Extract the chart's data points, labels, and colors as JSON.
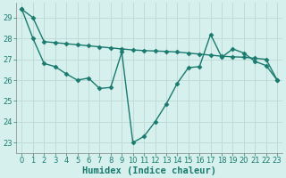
{
  "title": "",
  "xlabel": "Humidex (Indice chaleur)",
  "ylabel": "",
  "background_color": "#d6f0ee",
  "line_color": "#1a7a6e",
  "grid_color": "#c0dbd8",
  "xlim": [
    -0.5,
    23.5
  ],
  "ylim": [
    22.5,
    29.7
  ],
  "yticks": [
    23,
    24,
    25,
    26,
    27,
    28,
    29
  ],
  "xticks": [
    0,
    1,
    2,
    3,
    4,
    5,
    6,
    7,
    8,
    9,
    10,
    11,
    12,
    13,
    14,
    15,
    16,
    17,
    18,
    19,
    20,
    21,
    22,
    23
  ],
  "line1_x": [
    0,
    1,
    2,
    3,
    4,
    5,
    6,
    7,
    8,
    9,
    10,
    11,
    12,
    13,
    14,
    15,
    16,
    17,
    18,
    19,
    20,
    21,
    22,
    23
  ],
  "line1_y": [
    29.4,
    29.0,
    27.85,
    27.8,
    27.75,
    27.7,
    27.65,
    27.6,
    27.55,
    27.5,
    27.45,
    27.42,
    27.4,
    27.38,
    27.35,
    27.3,
    27.25,
    27.2,
    27.15,
    27.12,
    27.1,
    27.05,
    27.0,
    26.0
  ],
  "line2_x": [
    0,
    1,
    2,
    3,
    4,
    5,
    6,
    7,
    8,
    9,
    10,
    11,
    12,
    13,
    14,
    15,
    16,
    17,
    18,
    19,
    20,
    21,
    22,
    23
  ],
  "line2_y": [
    29.4,
    28.0,
    26.8,
    26.65,
    26.3,
    26.0,
    26.1,
    25.6,
    25.65,
    27.35,
    23.0,
    23.3,
    24.0,
    24.85,
    25.85,
    26.6,
    26.65,
    28.2,
    27.1,
    27.5,
    27.3,
    26.9,
    26.7,
    26.0
  ],
  "marker": "D",
  "markersize": 2.5,
  "linewidth": 1.0,
  "tick_fontsize": 6.0,
  "xlabel_fontsize": 7.5
}
